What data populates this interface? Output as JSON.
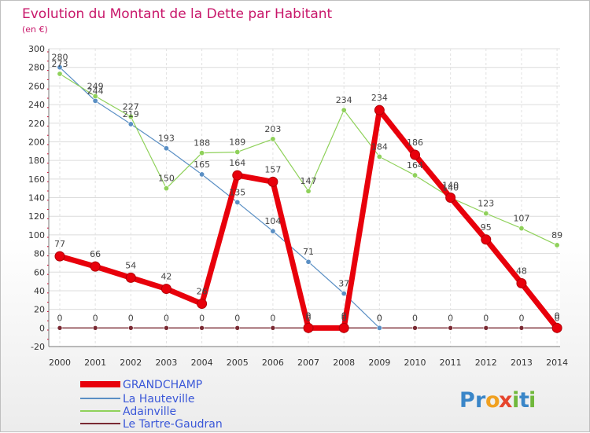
{
  "chart_data": {
    "type": "line",
    "title": "Evolution du Montant de la Dette par Habitant",
    "unit_label": "(en €)",
    "xlabel": "",
    "ylabel": "",
    "ylim": [
      -20,
      300
    ],
    "yticks": [
      -20,
      0,
      20,
      40,
      60,
      80,
      100,
      120,
      140,
      160,
      180,
      200,
      220,
      240,
      260,
      280,
      300
    ],
    "categories": [
      "2000",
      "2001",
      "2002",
      "2003",
      "2004",
      "2005",
      "2006",
      "2007",
      "2008",
      "2009",
      "2010",
      "2011",
      "2012",
      "2013",
      "2014"
    ],
    "series": [
      {
        "name": "Le Tartre-Gaudran",
        "color": "#7a2a33",
        "values": [
          0,
          0,
          0,
          0,
          0,
          0,
          0,
          0,
          0,
          0,
          0,
          0,
          0,
          0,
          0
        ]
      },
      {
        "name": "La Hauteville",
        "color": "#5a8fc4",
        "values": [
          280,
          244,
          219,
          193,
          165,
          135,
          104,
          71,
          37,
          0,
          null,
          null,
          null,
          null,
          null
        ]
      },
      {
        "name": "Adainville",
        "color": "#8fd15a",
        "values": [
          273,
          249,
          227,
          150,
          188,
          189,
          203,
          147,
          234,
          184,
          164,
          140,
          123,
          107,
          89
        ]
      },
      {
        "name": "GRANDCHAMP",
        "color": "#e8000b",
        "values": [
          77,
          66,
          54,
          42,
          26,
          164,
          157,
          0,
          0,
          234,
          186,
          140,
          95,
          48,
          0
        ]
      }
    ],
    "legend": {
      "position": "bottom-left",
      "entries": [
        "GRANDCHAMP",
        "La Hauteville",
        "Adainville",
        "Le Tartre-Gaudran"
      ]
    }
  },
  "logo": {
    "text": "Proxiti",
    "letters": [
      "P",
      "r",
      "o",
      "x",
      "i",
      "t",
      "i"
    ],
    "colors": [
      "#3a86c8",
      "#3a86c8",
      "#f0a020",
      "#e6452d",
      "#70b83c",
      "#3a86c8",
      "#70b83c"
    ]
  }
}
